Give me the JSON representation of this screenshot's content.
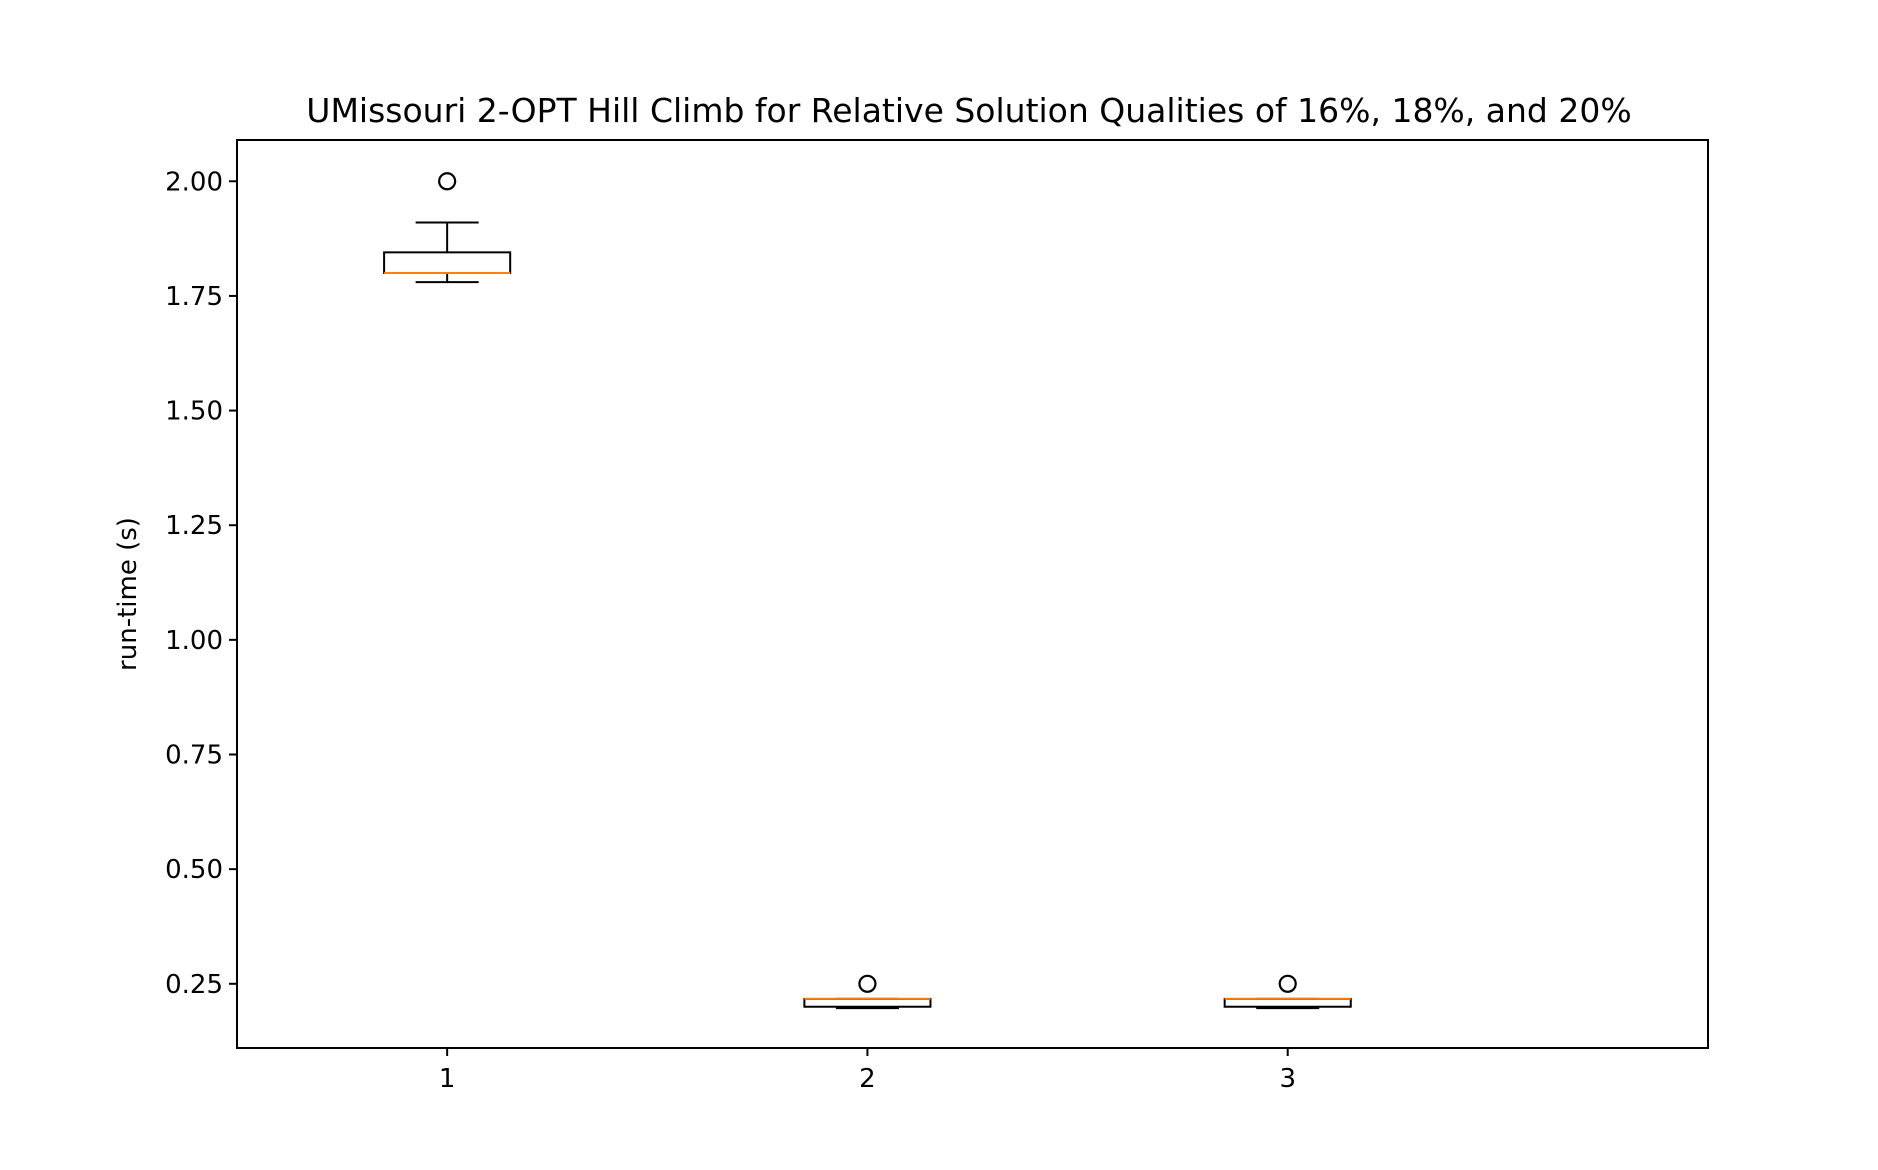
{
  "chart_data": {
    "type": "box",
    "title": "UMissouri 2-OPT Hill Climb for Relative Solution Qualities of 16%, 18%, and 20%",
    "xlabel": "",
    "ylabel": "run-time (s)",
    "categories": [
      "1",
      "2",
      "3"
    ],
    "ylim": [
      0.11,
      2.09
    ],
    "yticks": [
      "0.25",
      "0.50",
      "0.75",
      "1.00",
      "1.25",
      "1.50",
      "1.75",
      "2.00"
    ],
    "ytick_values": [
      0.25,
      0.5,
      0.75,
      1.0,
      1.25,
      1.5,
      1.75,
      2.0
    ],
    "grid": false,
    "boxes": [
      {
        "whisker_low": 1.78,
        "q1": 1.8,
        "median": 1.8,
        "q3": 1.845,
        "whisker_high": 1.91,
        "outliers": [
          2.0
        ]
      },
      {
        "whisker_low": 0.197,
        "q1": 0.2,
        "median": 0.217,
        "q3": 0.217,
        "whisker_high": 0.217,
        "outliers": [
          0.25
        ]
      },
      {
        "whisker_low": 0.197,
        "q1": 0.2,
        "median": 0.217,
        "q3": 0.217,
        "whisker_high": 0.217,
        "outliers": [
          0.25
        ]
      }
    ],
    "colors": {
      "box": "#000000",
      "median": "#ff7f0e",
      "background": "#ffffff"
    }
  }
}
